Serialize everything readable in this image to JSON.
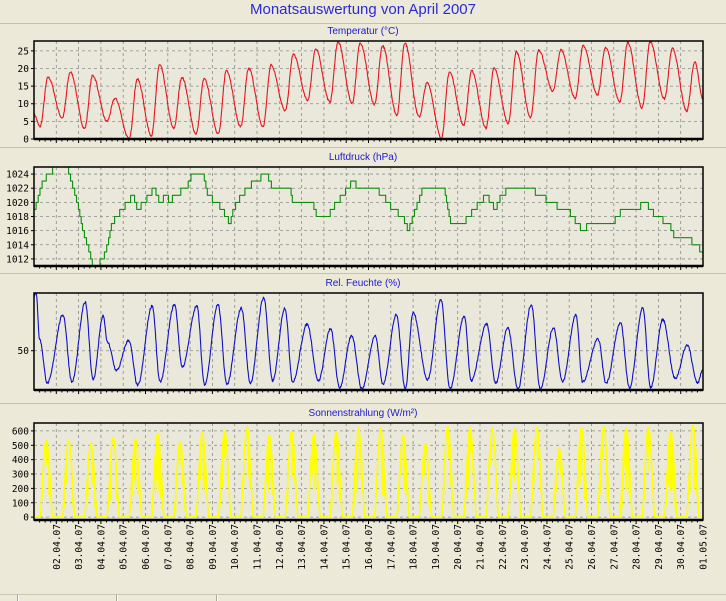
{
  "chart_data": {
    "title": "Monatsauswertung von April 2007",
    "x_tick_labels": [
      "02.04.07",
      "03.04.07",
      "04.04.07",
      "05.04.07",
      "06.04.07",
      "07.04.07",
      "08.04.07",
      "09.04.07",
      "10.04.07",
      "11.04.07",
      "12.04.07",
      "13.04.07",
      "14.04.07",
      "15.04.07",
      "16.04.07",
      "17.04.07",
      "18.04.07",
      "19.04.07",
      "20.04.07",
      "21.04.07",
      "22.04.07",
      "23.04.07",
      "24.04.07",
      "25.04.07",
      "26.04.07",
      "27.04.07",
      "28.04.07",
      "29.04.07",
      "30.04.07",
      "01.05.07"
    ],
    "x_unit": "days since 01.04.07",
    "xlim": [
      0,
      30
    ],
    "grid": true,
    "charts": [
      {
        "type": "line",
        "title": "Temperatur (°C)",
        "color": "#e8141e",
        "ylim": [
          0,
          27.8
        ],
        "yticks": [
          0,
          5,
          10,
          15,
          20,
          25
        ],
        "start_value": 7,
        "end_value": 11.4,
        "daily_min": [
          3.5,
          6,
          3,
          5,
          0,
          1,
          3,
          1.5,
          1.5,
          3.5,
          3.5,
          8,
          11,
          10.5,
          10.2,
          9.7,
          6.8,
          6.3,
          0.3,
          4,
          3.1,
          4.5,
          6,
          13.6,
          11.6,
          12.5,
          10.5,
          8.8,
          11.4,
          8
        ],
        "daily_max": [
          17.5,
          19,
          18,
          11.5,
          17,
          21,
          17.5,
          17,
          19.5,
          20,
          21,
          24,
          25.5,
          27.5,
          27.3,
          26.4,
          27.3,
          15.9,
          19,
          19.3,
          20,
          24.7,
          25.3,
          25.3,
          26.4,
          26,
          27.3,
          27.6,
          25.6,
          21.9
        ]
      },
      {
        "type": "line",
        "title": "Luftdruck (hPa)",
        "color": "#108c10",
        "ylim": [
          1011,
          1025
        ],
        "yticks": [
          1012,
          1014,
          1016,
          1018,
          1020,
          1022,
          1024
        ],
        "points": [
          [
            0,
            1018.5
          ],
          [
            0.4,
            1023
          ],
          [
            0.7,
            1024
          ],
          [
            0.95,
            1025
          ],
          [
            1.5,
            1025
          ],
          [
            1.95,
            1020
          ],
          [
            2.2,
            1016
          ],
          [
            2.5,
            1013
          ],
          [
            2.65,
            1011
          ],
          [
            2.95,
            1011.5
          ],
          [
            3.1,
            1012
          ],
          [
            3.3,
            1014
          ],
          [
            3.5,
            1017
          ],
          [
            3.95,
            1019
          ],
          [
            4.2,
            1020
          ],
          [
            4.45,
            1021
          ],
          [
            4.65,
            1019
          ],
          [
            4.95,
            1020
          ],
          [
            5.4,
            1022
          ],
          [
            5.65,
            1020
          ],
          [
            5.95,
            1021
          ],
          [
            6.1,
            1020
          ],
          [
            6.3,
            1021
          ],
          [
            6.85,
            1022
          ],
          [
            7.1,
            1024
          ],
          [
            7.6,
            1024
          ],
          [
            7.8,
            1021
          ],
          [
            8.2,
            1020
          ],
          [
            8.45,
            1019
          ],
          [
            8.8,
            1017
          ],
          [
            8.95,
            1019
          ],
          [
            9.3,
            1021
          ],
          [
            9.9,
            1023
          ],
          [
            10.45,
            1024
          ],
          [
            10.7,
            1022
          ],
          [
            11.5,
            1022
          ],
          [
            11.6,
            1020
          ],
          [
            12.5,
            1020
          ],
          [
            12.7,
            1018
          ],
          [
            13.2,
            1018
          ],
          [
            13.35,
            1019
          ],
          [
            13.85,
            1021
          ],
          [
            14.3,
            1023
          ],
          [
            14.7,
            1021.5
          ],
          [
            15.3,
            1022
          ],
          [
            15.65,
            1021
          ],
          [
            16.1,
            1019
          ],
          [
            16.55,
            1018
          ],
          [
            16.8,
            1016
          ],
          [
            17,
            1018
          ],
          [
            17.45,
            1022
          ],
          [
            18.4,
            1022
          ],
          [
            18.7,
            1017
          ],
          [
            19.25,
            1017
          ],
          [
            20,
            1020
          ],
          [
            20.3,
            1021
          ],
          [
            20.7,
            1019
          ],
          [
            20.95,
            1021
          ],
          [
            21.35,
            1022
          ],
          [
            22.25,
            1022
          ],
          [
            22.7,
            1021
          ],
          [
            23.2,
            1020
          ],
          [
            23.7,
            1019
          ],
          [
            24.05,
            1018.5
          ],
          [
            24.6,
            1016
          ],
          [
            24.95,
            1017
          ],
          [
            25.5,
            1017.5
          ],
          [
            25.95,
            1017
          ],
          [
            26.4,
            1019
          ],
          [
            26.95,
            1019
          ],
          [
            27.45,
            1020
          ],
          [
            27.65,
            1019
          ],
          [
            27.9,
            1018
          ],
          [
            28.5,
            1017
          ],
          [
            28.75,
            1015
          ],
          [
            29.3,
            1015
          ],
          [
            29.7,
            1014
          ],
          [
            30,
            1013
          ]
        ]
      },
      {
        "type": "line",
        "title": "Rel. Feuchte (%)",
        "color": "#1010c8",
        "ylim": [
          16,
          100
        ],
        "yticks": [
          50
        ],
        "points": [
          [
            0,
            97
          ],
          [
            0.1,
            100
          ],
          [
            0.25,
            60
          ],
          [
            0.6,
            22
          ],
          [
            1.3,
            81
          ],
          [
            1.7,
            23
          ],
          [
            2.3,
            92
          ],
          [
            2.65,
            25
          ],
          [
            3.1,
            80
          ],
          [
            3.3,
            57
          ],
          [
            3.7,
            33
          ],
          [
            4.25,
            59
          ],
          [
            4.65,
            20
          ],
          [
            5.3,
            89
          ],
          [
            5.65,
            23
          ],
          [
            6.3,
            90
          ],
          [
            6.65,
            36
          ],
          [
            7.3,
            89
          ],
          [
            7.65,
            21
          ],
          [
            8.25,
            90
          ],
          [
            8.65,
            21
          ],
          [
            9.3,
            87
          ],
          [
            9.7,
            22
          ],
          [
            10.3,
            96
          ],
          [
            10.7,
            24
          ],
          [
            11.25,
            87
          ],
          [
            11.6,
            23
          ],
          [
            12.25,
            73
          ],
          [
            12.75,
            24
          ],
          [
            13.3,
            69
          ],
          [
            13.7,
            18
          ],
          [
            14.25,
            63
          ],
          [
            14.7,
            17
          ],
          [
            15.3,
            63
          ],
          [
            15.65,
            21
          ],
          [
            16.25,
            81
          ],
          [
            16.65,
            17
          ],
          [
            17,
            83
          ],
          [
            17.65,
            25
          ],
          [
            18.25,
            94
          ],
          [
            18.65,
            17
          ],
          [
            19.3,
            80
          ],
          [
            19.6,
            24
          ],
          [
            20.3,
            73
          ],
          [
            20.7,
            22
          ],
          [
            21.25,
            70
          ],
          [
            21.7,
            17
          ],
          [
            22.3,
            90
          ],
          [
            22.7,
            17
          ],
          [
            23.3,
            70
          ],
          [
            23.7,
            23
          ],
          [
            24.3,
            81
          ],
          [
            24.6,
            23
          ],
          [
            25.3,
            60
          ],
          [
            25.65,
            22
          ],
          [
            26.3,
            74
          ],
          [
            26.7,
            18
          ],
          [
            27.3,
            87
          ],
          [
            27.65,
            18
          ],
          [
            28.2,
            77
          ],
          [
            28.75,
            26
          ],
          [
            29.3,
            55
          ],
          [
            29.75,
            22
          ],
          [
            30,
            34
          ]
        ]
      },
      {
        "type": "line",
        "title": "Sonnenstrahlung (W/m²)",
        "color": "#ffff00",
        "ylim": [
          -20,
          655
        ],
        "yticks": [
          0,
          100,
          200,
          300,
          400,
          500,
          600
        ],
        "daily_peak": [
          537,
          537,
          515,
          555,
          545,
          580,
          525,
          590,
          600,
          625,
          570,
          595,
          580,
          595,
          616,
          616,
          570,
          510,
          630,
          620,
          620,
          620,
          625,
          475,
          620,
          630,
          620,
          625,
          595,
          640
        ]
      }
    ]
  }
}
